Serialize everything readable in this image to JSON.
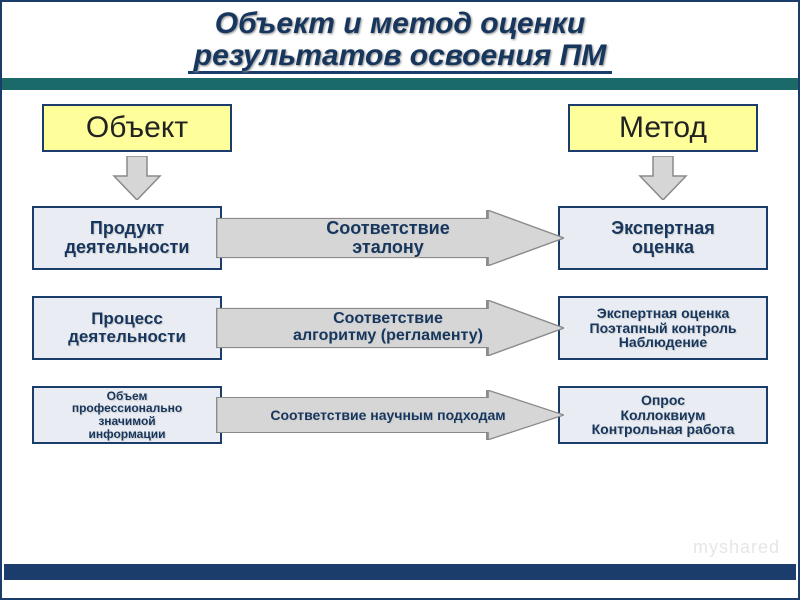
{
  "title_l1": "Объект и метод оценки",
  "title_l2": "результатов освоения ПМ",
  "colors": {
    "frame": "#1a3d6b",
    "teal_bar": "#1b6a6a",
    "header_bg": "#feff9b",
    "box_bg": "#e9edf3",
    "arrow_fill": "#d6d6d6",
    "arrow_stroke": "#8a8a8a",
    "text": "#17365d"
  },
  "headers": {
    "left": "Объект",
    "right": "Метод"
  },
  "rows": [
    {
      "left": "Продукт\nдеятельности",
      "mid": "Соответствие\nэталону",
      "right": "Экспертная\nоценка"
    },
    {
      "left": "Процесс\nдеятельности",
      "mid": "Соответствие\nалгоритму (регламенту)",
      "right": "Экспертная оценка\nПоэтапный контроль\nНаблюдение"
    },
    {
      "left": "Объем\nпрофессионально\nзначимой\nинформации",
      "mid": "Соответствие научным подходам",
      "right": "Опрос\nКоллоквиум\nКонтрольная работа"
    }
  ],
  "watermark": "myshared"
}
